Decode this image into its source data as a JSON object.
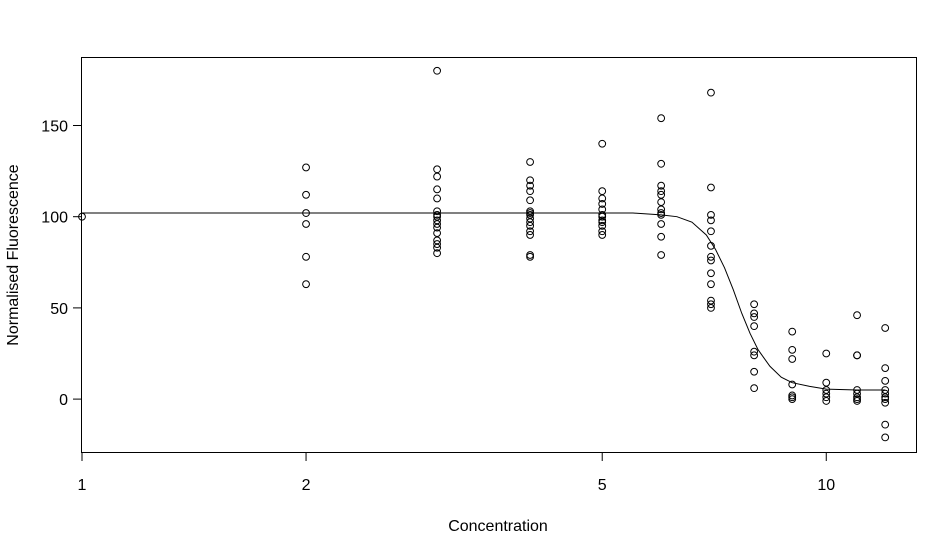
{
  "chart_data": {
    "type": "scatter",
    "title": "",
    "xlabel": "Concentration",
    "ylabel": "Normalised Fluorescence",
    "x_scale": "log",
    "xlim": [
      1,
      13.2
    ],
    "ylim": [
      -29,
      187
    ],
    "x_ticks": [
      1,
      2,
      5,
      10
    ],
    "x_tick_labels": [
      "1",
      "2",
      "5",
      "10"
    ],
    "y_ticks": [
      0,
      50,
      100,
      150
    ],
    "y_tick_labels": [
      "0",
      "50",
      "100",
      "150"
    ],
    "grid": false,
    "legend": "none",
    "series": [
      {
        "kind": "points",
        "points": [
          [
            1,
            100
          ],
          [
            2,
            127
          ],
          [
            2,
            112
          ],
          [
            2,
            102
          ],
          [
            2,
            96
          ],
          [
            2,
            78
          ],
          [
            2,
            63
          ],
          [
            3,
            180
          ],
          [
            3,
            126
          ],
          [
            3,
            122
          ],
          [
            3,
            115
          ],
          [
            3,
            110
          ],
          [
            3,
            103
          ],
          [
            3,
            101
          ],
          [
            3,
            100
          ],
          [
            3,
            98
          ],
          [
            3,
            96
          ],
          [
            3,
            94
          ],
          [
            3,
            91
          ],
          [
            3,
            87
          ],
          [
            3,
            85
          ],
          [
            3,
            83
          ],
          [
            3,
            80
          ],
          [
            4,
            130
          ],
          [
            4,
            120
          ],
          [
            4,
            117
          ],
          [
            4,
            114
          ],
          [
            4,
            109
          ],
          [
            4,
            103
          ],
          [
            4,
            102
          ],
          [
            4,
            101
          ],
          [
            4,
            99
          ],
          [
            4,
            97
          ],
          [
            4,
            95
          ],
          [
            4,
            92
          ],
          [
            4,
            90
          ],
          [
            4,
            79
          ],
          [
            4,
            78
          ],
          [
            5,
            140
          ],
          [
            5,
            114
          ],
          [
            5,
            110
          ],
          [
            5,
            107
          ],
          [
            5,
            104
          ],
          [
            5,
            101
          ],
          [
            5,
            100
          ],
          [
            5,
            98
          ],
          [
            5,
            97
          ],
          [
            5,
            95
          ],
          [
            5,
            92
          ],
          [
            5,
            90
          ],
          [
            6,
            154
          ],
          [
            6,
            129
          ],
          [
            6,
            117
          ],
          [
            6,
            114
          ],
          [
            6,
            112
          ],
          [
            6,
            108
          ],
          [
            6,
            104
          ],
          [
            6,
            102
          ],
          [
            6,
            101
          ],
          [
            6,
            96
          ],
          [
            6,
            89
          ],
          [
            6,
            79
          ],
          [
            7,
            168
          ],
          [
            7,
            116
          ],
          [
            7,
            101
          ],
          [
            7,
            98
          ],
          [
            7,
            92
          ],
          [
            7,
            84
          ],
          [
            7,
            78
          ],
          [
            7,
            76
          ],
          [
            7,
            69
          ],
          [
            7,
            63
          ],
          [
            7,
            54
          ],
          [
            7,
            52
          ],
          [
            7,
            50
          ],
          [
            8,
            52
          ],
          [
            8,
            47
          ],
          [
            8,
            45
          ],
          [
            8,
            40
          ],
          [
            8,
            26
          ],
          [
            8,
            24
          ],
          [
            8,
            15
          ],
          [
            8,
            6
          ],
          [
            9,
            37
          ],
          [
            9,
            27
          ],
          [
            9,
            22
          ],
          [
            9,
            8
          ],
          [
            9,
            2
          ],
          [
            9,
            1
          ],
          [
            9,
            0
          ],
          [
            10,
            25
          ],
          [
            10,
            9
          ],
          [
            10,
            5
          ],
          [
            10,
            3
          ],
          [
            10,
            1
          ],
          [
            10,
            -1
          ],
          [
            11,
            46
          ],
          [
            11,
            24
          ],
          [
            11,
            24
          ],
          [
            11,
            5
          ],
          [
            11,
            3
          ],
          [
            11,
            1
          ],
          [
            11,
            0
          ],
          [
            11,
            -1
          ],
          [
            12,
            39
          ],
          [
            12,
            17
          ],
          [
            12,
            10
          ],
          [
            12,
            5
          ],
          [
            12,
            3
          ],
          [
            12,
            1
          ],
          [
            12,
            0
          ],
          [
            12,
            -2
          ],
          [
            12,
            -14
          ],
          [
            12,
            -21
          ]
        ]
      },
      {
        "kind": "fitted-curve",
        "points": [
          [
            1,
            102
          ],
          [
            2,
            102
          ],
          [
            3,
            102
          ],
          [
            4,
            102
          ],
          [
            5,
            102
          ],
          [
            5.5,
            102
          ],
          [
            6,
            101
          ],
          [
            6.3,
            100
          ],
          [
            6.6,
            97
          ],
          [
            6.9,
            90
          ],
          [
            7.1,
            82
          ],
          [
            7.3,
            72
          ],
          [
            7.5,
            60
          ],
          [
            7.7,
            47
          ],
          [
            7.9,
            36
          ],
          [
            8.1,
            27
          ],
          [
            8.4,
            18
          ],
          [
            8.7,
            12
          ],
          [
            9,
            9
          ],
          [
            9.5,
            7
          ],
          [
            10,
            5.5
          ],
          [
            11,
            5
          ],
          [
            12,
            5
          ]
        ]
      }
    ]
  }
}
